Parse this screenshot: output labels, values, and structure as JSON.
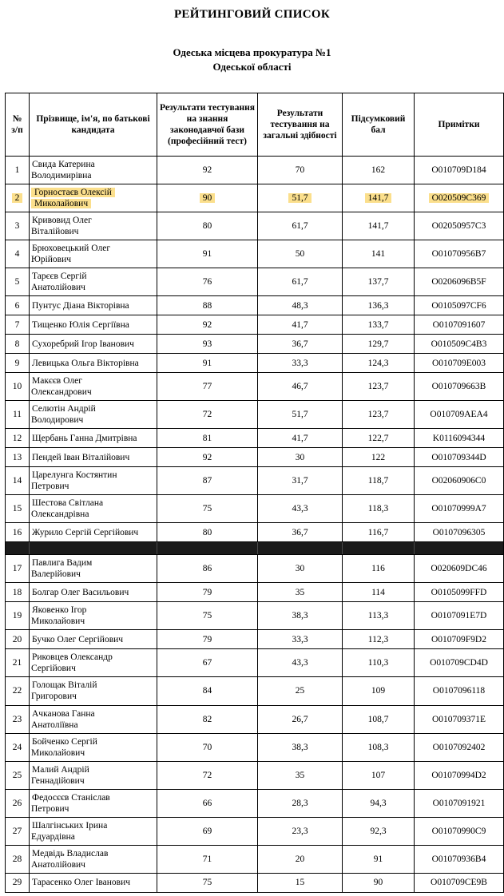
{
  "page": {
    "title": "РЕЙТИНГОВИЙ СПИСОК",
    "subtitle_line1": "Одеська місцева прокуратура №1",
    "subtitle_line2": "Одеської області"
  },
  "table": {
    "headers": {
      "num": "№\nз/п",
      "name": "Прізвище, ім'я, по батькові кандидата",
      "prof_test": "Результати тестування на знання законодавчої бази (професійний тест)",
      "abilities_test": "Результати тестування на загальні здібності",
      "total": "Підсумковий бал",
      "notes": "Примітки"
    },
    "highlight_color": "#fbdf8c",
    "redacted_bar_color": "#1b1b1b",
    "rows": [
      {
        "num": "1",
        "name": "Свида Катерина\nВолодимирівна",
        "prof": "92",
        "abil": "70",
        "total": "162",
        "note": "O010709D184",
        "highlight": false
      },
      {
        "num": "2",
        "name": "Горностаєв Олексій\nМиколайович",
        "prof": "90",
        "abil": "51,7",
        "total": "141,7",
        "note": "O020509C369",
        "highlight": true
      },
      {
        "num": "3",
        "name": "Кривовид Олег\nВіталійович",
        "prof": "80",
        "abil": "61,7",
        "total": "141,7",
        "note": "O02050957C3",
        "highlight": false
      },
      {
        "num": "4",
        "name": "Брюховецький Олег\nЮрійович",
        "prof": "91",
        "abil": "50",
        "total": "141",
        "note": "O01070956B7",
        "highlight": false
      },
      {
        "num": "5",
        "name": "Тарєєв Сергій\nАнатолійович",
        "prof": "76",
        "abil": "61,7",
        "total": "137,7",
        "note": "O0206096B5F",
        "highlight": false
      },
      {
        "num": "6",
        "name": "Пунтус Діана Вікторівна",
        "prof": "88",
        "abil": "48,3",
        "total": "136,3",
        "note": "O0105097CF6",
        "highlight": false
      },
      {
        "num": "7",
        "name": "Тищенко Юлія Сергіївна",
        "prof": "92",
        "abil": "41,7",
        "total": "133,7",
        "note": "O0107091607",
        "highlight": false
      },
      {
        "num": "8",
        "name": "Сухоребрий Ігор Іванович",
        "prof": "93",
        "abil": "36,7",
        "total": "129,7",
        "note": "O010509C4B3",
        "highlight": false
      },
      {
        "num": "9",
        "name": "Левицька Ольга Вікторівна",
        "prof": "91",
        "abil": "33,3",
        "total": "124,3",
        "note": "O010709E003",
        "highlight": false
      },
      {
        "num": "10",
        "name": "Макєєв Олег\nОлександрович",
        "prof": "77",
        "abil": "46,7",
        "total": "123,7",
        "note": "O010709663B",
        "highlight": false
      },
      {
        "num": "11",
        "name": "Селютін Андрій\nВолодирович",
        "prof": "72",
        "abil": "51,7",
        "total": "123,7",
        "note": "O010709AEA4",
        "highlight": false
      },
      {
        "num": "12",
        "name": "Щербань Ганна Дмитрівна",
        "prof": "81",
        "abil": "41,7",
        "total": "122,7",
        "note": "K0116094344",
        "highlight": false
      },
      {
        "num": "13",
        "name": "Пендей Іван Віталійович",
        "prof": "92",
        "abil": "30",
        "total": "122",
        "note": "O010709344D",
        "highlight": false
      },
      {
        "num": "14",
        "name": "Царелунга Костянтин\nПетрович",
        "prof": "87",
        "abil": "31,7",
        "total": "118,7",
        "note": "O02060906C0",
        "highlight": false
      },
      {
        "num": "15",
        "name": "Шестова Світлана\nОлександрівна",
        "prof": "75",
        "abil": "43,3",
        "total": "118,3",
        "note": "O01070999A7",
        "highlight": false
      },
      {
        "num": "16",
        "name": "Журило Сергій Сергійович",
        "prof": "80",
        "abil": "36,7",
        "total": "116,7",
        "note": "O0107096305",
        "highlight": false
      },
      {
        "type": "redacted"
      },
      {
        "num": "17",
        "name": "Павлига Вадим\nВалерійович",
        "prof": "86",
        "abil": "30",
        "total": "116",
        "note": "O020609DC46",
        "highlight": false
      },
      {
        "num": "18",
        "name": "Болгар Олег Васильович",
        "prof": "79",
        "abil": "35",
        "total": "114",
        "note": "O0105099FFD",
        "highlight": false
      },
      {
        "num": "19",
        "name": "Яковенко Ігор\nМиколайович",
        "prof": "75",
        "abil": "38,3",
        "total": "113,3",
        "note": "O0107091E7D",
        "highlight": false
      },
      {
        "num": "20",
        "name": "Бучко Олег Сергійович",
        "prof": "79",
        "abil": "33,3",
        "total": "112,3",
        "note": "O010709F9D2",
        "highlight": false
      },
      {
        "num": "21",
        "name": "Риковцев Олександр\nСергійович",
        "prof": "67",
        "abil": "43,3",
        "total": "110,3",
        "note": "O010709CD4D",
        "highlight": false
      },
      {
        "num": "22",
        "name": "Голощак Віталій\nГригорович",
        "prof": "84",
        "abil": "25",
        "total": "109",
        "note": "O0107096118",
        "highlight": false
      },
      {
        "num": "23",
        "name": "Ачканова Ганна\nАнатоліївна",
        "prof": "82",
        "abil": "26,7",
        "total": "108,7",
        "note": "O010709371E",
        "highlight": false
      },
      {
        "num": "24",
        "name": "Бойченко Сергій\nМиколайович",
        "prof": "70",
        "abil": "38,3",
        "total": "108,3",
        "note": "O0107092402",
        "highlight": false
      },
      {
        "num": "25",
        "name": "Малий Андрій\nГеннадійович",
        "prof": "72",
        "abil": "35",
        "total": "107",
        "note": "O01070994D2",
        "highlight": false
      },
      {
        "num": "26",
        "name": "Федосєєв Станіслав\nПетрович",
        "prof": "66",
        "abil": "28,3",
        "total": "94,3",
        "note": "O0107091921",
        "highlight": false
      },
      {
        "num": "27",
        "name": "Шалгінських Ірина\nЕдуардівна",
        "prof": "69",
        "abil": "23,3",
        "total": "92,3",
        "note": "O01070990C9",
        "highlight": false
      },
      {
        "num": "28",
        "name": "Медвідь Владислав\nАнатолійович",
        "prof": "71",
        "abil": "20",
        "total": "91",
        "note": "O01070936B4",
        "highlight": false
      },
      {
        "num": "29",
        "name": "Тарасенко Олег Іванович",
        "prof": "75",
        "abil": "15",
        "total": "90",
        "note": "O010709CE9B",
        "highlight": false
      }
    ]
  }
}
